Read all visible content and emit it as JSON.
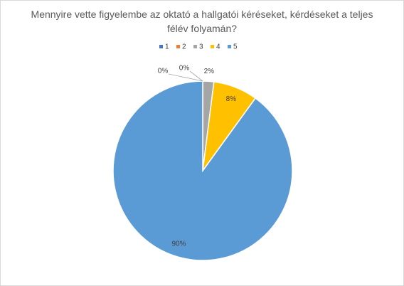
{
  "chart_data": {
    "type": "pie",
    "title": "Mennyire vette figyelembe az oktató a hallgatói kéréseket, kérdéseket a teljes félév folyamán?",
    "categories": [
      "1",
      "2",
      "3",
      "4",
      "5"
    ],
    "values": [
      0,
      0,
      2,
      8,
      90
    ],
    "value_labels": [
      "0%",
      "0%",
      "2%",
      "8%",
      "90%"
    ],
    "colors": [
      "#4472c4",
      "#ed7d31",
      "#a5a5a5",
      "#ffc000",
      "#5b9bd5"
    ],
    "legend": "top"
  }
}
